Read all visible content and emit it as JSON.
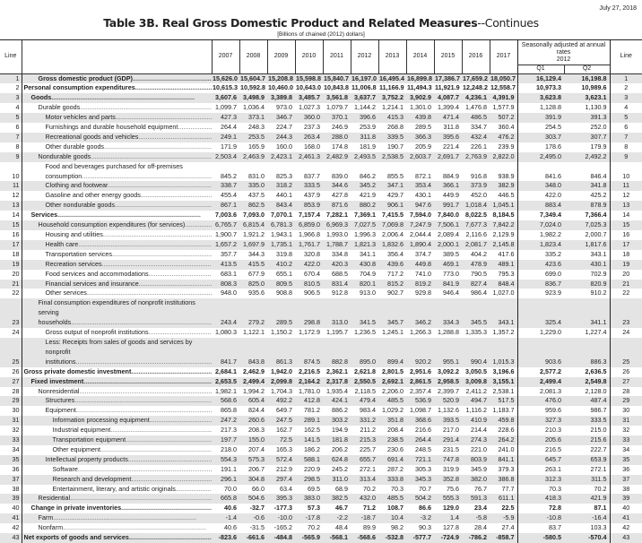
{
  "date": "July 27, 2018",
  "title": "Table 3B. Real Gross Domestic Product and Related Measures",
  "title_suffix": "--Continues",
  "units": "[Billions of chained (2012) dollars]",
  "header": {
    "line": "Line",
    "years": [
      "2007",
      "2008",
      "2009",
      "2010",
      "2011",
      "2012",
      "2013",
      "2014",
      "2015",
      "2016",
      "2017"
    ],
    "seasonal": "Seasonally adjusted at annual rates",
    "seasonal_year": "2012",
    "quarters": [
      "Q1",
      "Q2"
    ],
    "line_right": "Line"
  },
  "rows": [
    {
      "line": "1",
      "label": "Gross domestic product (GDP)",
      "indent": 2,
      "bold": true,
      "values": [
        "15,626.0",
        "15,604.7",
        "15,208.8",
        "15,598.8",
        "15,840.7",
        "16,197.0",
        "16,495.4",
        "16,899.8",
        "17,386.7",
        "17,659.2",
        "18,050.7",
        "16,129.4",
        "16,198.8"
      ]
    },
    {
      "line": "2",
      "label": "Personal consumption expenditures",
      "indent": 0,
      "bold": true,
      "values": [
        "10,615.3",
        "10,592.8",
        "10,460.0",
        "10,643.0",
        "10,843.8",
        "11,006.8",
        "11,166.9",
        "11,494.3",
        "11,921.9",
        "12,248.2",
        "12,558.7",
        "10,973.3",
        "10,989.6"
      ]
    },
    {
      "line": "3",
      "label": "Goods",
      "indent": 1,
      "bold": true,
      "values": [
        "3,607.6",
        "3,498.9",
        "3,389.8",
        "3,485.7",
        "3,561.8",
        "3,637.7",
        "3,752.2",
        "3,902.9",
        "4,087.7",
        "4,236.1",
        "4,391.9",
        "3,623.8",
        "3,623.1"
      ]
    },
    {
      "line": "4",
      "label": "Durable goods",
      "indent": 2,
      "values": [
        "1,099.7",
        "1,036.4",
        "973.0",
        "1,027.3",
        "1,079.7",
        "1,144.2",
        "1,214.1",
        "1,301.0",
        "1,399.4",
        "1,476.8",
        "1,577.9",
        "1,128.8",
        "1,130.9"
      ]
    },
    {
      "line": "5",
      "label": "Motor vehicles and parts",
      "indent": 3,
      "values": [
        "427.3",
        "373.1",
        "346.7",
        "360.0",
        "370.1",
        "396.6",
        "415.3",
        "439.8",
        "471.4",
        "486.5",
        "507.2",
        "391.9",
        "391.3"
      ]
    },
    {
      "line": "6",
      "label": "Furnishings and durable household equipment",
      "indent": 3,
      "values": [
        "264.4",
        "248.3",
        "224.7",
        "237.3",
        "246.9",
        "253.9",
        "268.8",
        "289.5",
        "311.8",
        "334.7",
        "360.4",
        "254.5",
        "252.0"
      ]
    },
    {
      "line": "7",
      "label": "Recreational goods and vehicles",
      "indent": 3,
      "values": [
        "249.1",
        "253.5",
        "244.3",
        "263.4",
        "288.0",
        "311.8",
        "339.5",
        "366.3",
        "395.6",
        "432.4",
        "476.2",
        "303.7",
        "307.7"
      ]
    },
    {
      "line": "8",
      "label": "Other durable goods",
      "indent": 3,
      "values": [
        "171.9",
        "165.9",
        "160.0",
        "168.0",
        "174.8",
        "181.9",
        "190.7",
        "205.9",
        "221.4",
        "226.1",
        "239.9",
        "178.6",
        "179.9"
      ]
    },
    {
      "line": "9",
      "label": "Nondurable goods",
      "indent": 2,
      "values": [
        "2,503.4",
        "2,463.9",
        "2,423.1",
        "2,461.3",
        "2,482.9",
        "2,493.5",
        "2,538.5",
        "2,603.7",
        "2,691.7",
        "2,763.9",
        "2,822.0",
        "2,495.0",
        "2,492.2"
      ]
    },
    {
      "line": "10",
      "label": "Food and beverages purchased for off-premises consumption",
      "indent": 3,
      "double": true,
      "values": [
        "845.2",
        "831.0",
        "825.3",
        "837.7",
        "839.0",
        "846.2",
        "855.5",
        "872.1",
        "884.9",
        "916.8",
        "938.9",
        "841.6",
        "846.4"
      ]
    },
    {
      "line": "11",
      "label": "Clothing and footwear",
      "indent": 3,
      "values": [
        "338.7",
        "335.0",
        "318.2",
        "333.5",
        "344.6",
        "345.2",
        "347.1",
        "353.4",
        "366.1",
        "373.9",
        "382.9",
        "348.0",
        "341.8"
      ]
    },
    {
      "line": "12",
      "label": "Gasoline and other energy goods",
      "indent": 3,
      "values": [
        "455.4",
        "437.5",
        "440.1",
        "437.9",
        "427.8",
        "421.9",
        "429.7",
        "430.1",
        "449.9",
        "452.0",
        "446.5",
        "422.0",
        "425.2"
      ]
    },
    {
      "line": "13",
      "label": "Other nondurable goods",
      "indent": 3,
      "values": [
        "867.1",
        "862.5",
        "843.4",
        "853.9",
        "871.6",
        "880.2",
        "906.1",
        "947.6",
        "991.7",
        "1,018.4",
        "1,045.1",
        "883.4",
        "878.9"
      ]
    },
    {
      "line": "14",
      "label": "Services",
      "indent": 1,
      "bold": true,
      "values": [
        "7,003.6",
        "7,093.0",
        "7,070.1",
        "7,157.4",
        "7,282.1",
        "7,369.1",
        "7,415.5",
        "7,594.0",
        "7,840.0",
        "8,022.5",
        "8,184.5",
        "7,349.4",
        "7,366.4"
      ]
    },
    {
      "line": "15",
      "label": "Household consumption expenditures (for services)",
      "indent": 2,
      "values": [
        "6,765.7",
        "6,815.4",
        "6,781.3",
        "6,859.0",
        "6,969.3",
        "7,027.5",
        "7,069.8",
        "7,247.9",
        "7,506.1",
        "7,677.3",
        "7,842.2",
        "7,024.0",
        "7,025.3"
      ]
    },
    {
      "line": "16",
      "label": "Housing and utilities",
      "indent": 3,
      "values": [
        "1,900.7",
        "1,921.2",
        "1,943.1",
        "1,966.8",
        "1,993.0",
        "1,996.3",
        "2,006.4",
        "2,044.4",
        "2,089.4",
        "2,116.6",
        "2,129.9",
        "1,982.2",
        "2,000.7"
      ]
    },
    {
      "line": "17",
      "label": "Health care",
      "indent": 3,
      "values": [
        "1,657.2",
        "1,697.9",
        "1,735.1",
        "1,761.7",
        "1,788.7",
        "1,821.3",
        "1,832.6",
        "1,890.4",
        "2,000.1",
        "2,081.7",
        "2,145.8",
        "1,823.4",
        "1,817.6"
      ]
    },
    {
      "line": "18",
      "label": "Transportation services",
      "indent": 3,
      "values": [
        "357.7",
        "344.3",
        "319.8",
        "320.8",
        "334.8",
        "341.1",
        "356.4",
        "374.7",
        "389.5",
        "404.2",
        "417.6",
        "335.2",
        "343.1"
      ]
    },
    {
      "line": "19",
      "label": "Recreation services",
      "indent": 3,
      "values": [
        "413.5",
        "415.5",
        "410.2",
        "422.0",
        "420.3",
        "430.8",
        "439.6",
        "449.8",
        "469.1",
        "478.9",
        "489.1",
        "423.6",
        "430.1"
      ]
    },
    {
      "line": "20",
      "label": "Food services and accommodations",
      "indent": 3,
      "values": [
        "683.1",
        "677.9",
        "655.1",
        "670.4",
        "688.5",
        "704.9",
        "717.2",
        "741.0",
        "773.0",
        "790.5",
        "795.3",
        "699.0",
        "702.9"
      ]
    },
    {
      "line": "21",
      "label": "Financial services and insurance",
      "indent": 3,
      "values": [
        "808.3",
        "825.0",
        "809.5",
        "810.5",
        "831.4",
        "820.1",
        "815.2",
        "819.2",
        "841.9",
        "827.4",
        "848.4",
        "836.7",
        "820.9"
      ]
    },
    {
      "line": "22",
      "label": "Other services",
      "indent": 3,
      "values": [
        "948.0",
        "935.6",
        "908.8",
        "906.5",
        "912.8",
        "913.0",
        "902.7",
        "929.8",
        "946.4",
        "986.4",
        "1,027.0",
        "923.9",
        "910.2"
      ]
    },
    {
      "line": "23",
      "label": "Final consumption expenditures of nonprofit institutions serving households",
      "indent": 2,
      "double": true,
      "values": [
        "243.4",
        "279.2",
        "289.5",
        "298.8",
        "313.0",
        "341.5",
        "345.7",
        "346.2",
        "334.3",
        "345.5",
        "343.1",
        "325.4",
        "341.1"
      ]
    },
    {
      "line": "24",
      "label": "Gross output of nonprofit institutions",
      "indent": 3,
      "values": [
        "1,080.3",
        "1,122.1",
        "1,150.2",
        "1,172.9",
        "1,195.7",
        "1,236.5",
        "1,245.1",
        "1,266.3",
        "1,288.8",
        "1,335.3",
        "1,357.2",
        "1,229.0",
        "1,227.4"
      ]
    },
    {
      "line": "25",
      "label": "Less: Receipts from sales of goods and services by nonprofit institutions",
      "indent": 3,
      "double": true,
      "values": [
        "841.7",
        "843.8",
        "861.3",
        "874.5",
        "882.8",
        "895.0",
        "899.4",
        "920.2",
        "955.1",
        "990.4",
        "1,015.3",
        "903.6",
        "886.3"
      ]
    },
    {
      "line": "26",
      "label": "Gross private domestic investment",
      "indent": 0,
      "bold": true,
      "values": [
        "2,684.1",
        "2,462.9",
        "1,942.0",
        "2,216.5",
        "2,362.1",
        "2,621.8",
        "2,801.5",
        "2,951.6",
        "3,092.2",
        "3,050.5",
        "3,196.6",
        "2,577.2",
        "2,636.5"
      ]
    },
    {
      "line": "27",
      "label": "Fixed investment",
      "indent": 1,
      "bold": true,
      "values": [
        "2,653.5",
        "2,499.4",
        "2,099.8",
        "2,164.2",
        "2,317.8",
        "2,550.5",
        "2,692.1",
        "2,861.5",
        "2,958.5",
        "3,009.8",
        "3,155.1",
        "2,499.4",
        "2,549.8"
      ]
    },
    {
      "line": "28",
      "label": "Nonresidential",
      "indent": 2,
      "values": [
        "1,982.1",
        "1,994.2",
        "1,704.3",
        "1,781.0",
        "1,935.4",
        "2,118.5",
        "2,206.0",
        "2,357.4",
        "2,399.7",
        "2,411.2",
        "2,538.1",
        "2,081.3",
        "2,128.0"
      ]
    },
    {
      "line": "29",
      "label": "Structures",
      "indent": 3,
      "values": [
        "568.6",
        "605.4",
        "492.2",
        "412.8",
        "424.1",
        "479.4",
        "485.5",
        "536.9",
        "520.9",
        "494.7",
        "517.5",
        "476.0",
        "487.4"
      ]
    },
    {
      "line": "30",
      "label": "Equipment",
      "indent": 3,
      "values": [
        "865.8",
        "824.4",
        "649.7",
        "781.2",
        "886.2",
        "983.4",
        "1,029.2",
        "1,098.7",
        "1,132.6",
        "1,116.2",
        "1,183.7",
        "959.6",
        "986.7"
      ]
    },
    {
      "line": "31",
      "label": "Information processing equipment",
      "indent": 4,
      "values": [
        "247.2",
        "260.6",
        "247.5",
        "289.1",
        "303.2",
        "331.2",
        "351.8",
        "368.6",
        "393.5",
        "410.9",
        "459.8",
        "327.3",
        "333.5"
      ]
    },
    {
      "line": "32",
      "label": "Industrial equipment",
      "indent": 4,
      "values": [
        "217.3",
        "208.3",
        "162.7",
        "162.5",
        "194.9",
        "211.2",
        "208.4",
        "216.6",
        "217.0",
        "214.4",
        "228.6",
        "210.3",
        "215.0"
      ]
    },
    {
      "line": "33",
      "label": "Transportation equipment",
      "indent": 4,
      "values": [
        "197.7",
        "155.0",
        "72.5",
        "141.5",
        "181.8",
        "215.3",
        "238.5",
        "264.4",
        "291.4",
        "274.3",
        "264.2",
        "205.6",
        "215.6"
      ]
    },
    {
      "line": "34",
      "label": "Other equipment",
      "indent": 4,
      "values": [
        "218.0",
        "207.4",
        "165.3",
        "186.2",
        "206.2",
        "225.7",
        "230.6",
        "248.5",
        "231.5",
        "221.0",
        "241.0",
        "216.5",
        "222.7"
      ]
    },
    {
      "line": "35",
      "label": "Intellectual property products",
      "indent": 3,
      "values": [
        "554.3",
        "575.3",
        "572.4",
        "588.1",
        "624.8",
        "655.7",
        "691.4",
        "721.1",
        "747.8",
        "803.9",
        "841.1",
        "645.7",
        "653.9"
      ]
    },
    {
      "line": "36",
      "label": "Software",
      "indent": 4,
      "values": [
        "191.1",
        "206.7",
        "212.9",
        "220.9",
        "245.2",
        "272.1",
        "287.2",
        "305.3",
        "319.9",
        "345.9",
        "379.3",
        "263.1",
        "272.1"
      ]
    },
    {
      "line": "37",
      "label": "Research and development",
      "indent": 4,
      "values": [
        "296.1",
        "304.8",
        "297.4",
        "298.5",
        "311.0",
        "313.4",
        "333.8",
        "345.3",
        "352.8",
        "382.0",
        "386.8",
        "312.3",
        "311.5"
      ]
    },
    {
      "line": "38",
      "label": "Entertainment, literary, and artistic originals",
      "indent": 4,
      "values": [
        "70.0",
        "66.0",
        "63.4",
        "69.5",
        "68.9",
        "70.2",
        "70.3",
        "70.7",
        "75.6",
        "76.7",
        "77.7",
        "70.3",
        "70.2"
      ]
    },
    {
      "line": "39",
      "label": "Residential",
      "indent": 2,
      "values": [
        "665.8",
        "504.6",
        "395.3",
        "383.0",
        "382.5",
        "432.0",
        "485.5",
        "504.2",
        "555.3",
        "591.3",
        "611.1",
        "418.3",
        "421.9"
      ]
    },
    {
      "line": "40",
      "label": "Change in private inventories",
      "indent": 1,
      "bold": true,
      "values": [
        "40.6",
        "-32.7",
        "-177.3",
        "57.3",
        "46.7",
        "71.2",
        "108.7",
        "86.6",
        "129.0",
        "23.4",
        "22.5",
        "72.8",
        "87.1"
      ]
    },
    {
      "line": "41",
      "label": "Farm",
      "indent": 2,
      "values": [
        "-1.4",
        "-0.6",
        "-10.0",
        "-17.8",
        "-2.2",
        "-18.7",
        "10.4",
        "-3.2",
        "1.4",
        "-5.8",
        "-5.9",
        "-10.8",
        "-16.4"
      ]
    },
    {
      "line": "42",
      "label": "Nonfarm",
      "indent": 2,
      "values": [
        "40.6",
        "-31.5",
        "-165.2",
        "70.2",
        "48.4",
        "89.9",
        "98.2",
        "90.3",
        "127.8",
        "28.4",
        "27.4",
        "83.7",
        "103.3"
      ]
    },
    {
      "line": "43",
      "label": "Net exports of goods and services",
      "indent": 0,
      "bold": true,
      "values": [
        "-823.6",
        "-661.6",
        "-484.8",
        "-565.9",
        "-568.1",
        "-568.6",
        "-532.8",
        "-577.7",
        "-724.9",
        "-786.2",
        "-858.7",
        "-580.5",
        "-570.4"
      ]
    }
  ]
}
